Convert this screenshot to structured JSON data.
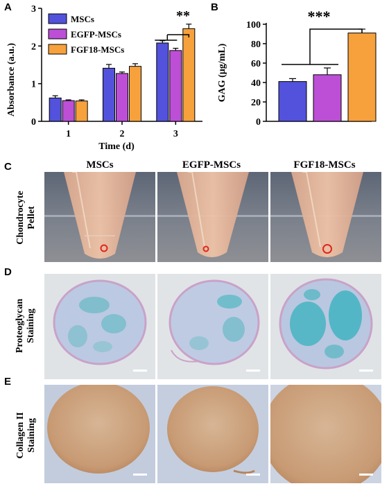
{
  "panels": {
    "a": "A",
    "b": "B",
    "c": "C",
    "d": "D",
    "e": "E"
  },
  "colors": {
    "msc": "#5252dc",
    "egfp": "#bc4fd6",
    "fgf18": "#f6a13c"
  },
  "chart_data": [
    {
      "type": "bar",
      "categories": [
        "1",
        "2",
        "3"
      ],
      "series": [
        {
          "name": "MSCs",
          "values": [
            0.62,
            1.41,
            2.08
          ],
          "errors": [
            0.06,
            0.1,
            0.06
          ]
        },
        {
          "name": "EGFP-MSCs",
          "values": [
            0.55,
            1.27,
            1.88
          ],
          "errors": [
            0.02,
            0.04,
            0.06
          ]
        },
        {
          "name": "FGF18-MSCs",
          "values": [
            0.54,
            1.46,
            2.46
          ],
          "errors": [
            0.03,
            0.07,
            0.12
          ]
        }
      ],
      "xlabel": "Time (d)",
      "ylabel": "Absorbance (a.u.)",
      "ylim": [
        0,
        3
      ],
      "yticks": [
        "0",
        "1",
        "2",
        "3"
      ],
      "legend": "top-left",
      "significance": "**"
    },
    {
      "type": "bar",
      "categories": [
        "MSCs",
        "EGFP-MSCs",
        "FGF18-MSCs"
      ],
      "values": [
        41,
        48,
        91
      ],
      "errors": [
        3,
        7,
        4
      ],
      "ylabel": "GAG (μg/mL)",
      "ylim": [
        0,
        100
      ],
      "yticks": [
        "0",
        "20",
        "40",
        "60",
        "80",
        "100"
      ],
      "significance": "***"
    }
  ],
  "columns": [
    "MSCs",
    "EGFP-MSCs",
    "FGF18-MSCs"
  ],
  "rows": {
    "c": [
      "Chondrocyte",
      "Pellet"
    ],
    "d": [
      "Proteoglycan",
      "Staining"
    ],
    "e": [
      "Collagen II",
      "Staining"
    ]
  }
}
